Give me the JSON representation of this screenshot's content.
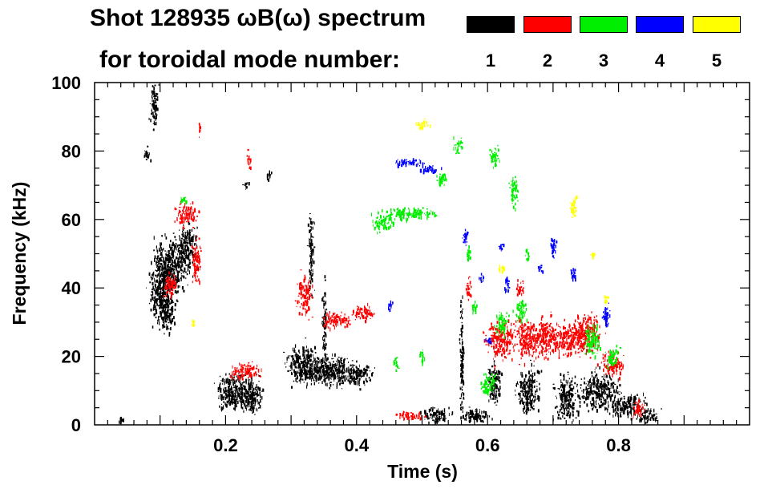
{
  "chart_data": {
    "type": "scatter",
    "title_line1": "Shot 128935 ωB(ω) spectrum",
    "title_line2": "for toroidal mode number:",
    "xlabel": "Time (s)",
    "ylabel": "Frequency (kHz)",
    "xlim": [
      0.0,
      1.0
    ],
    "ylim": [
      0,
      100
    ],
    "xticks": [
      0.2,
      0.4,
      0.6,
      0.8
    ],
    "xtick_labels": [
      "0.2",
      "0.4",
      "0.6",
      "0.8"
    ],
    "yticks": [
      0,
      20,
      40,
      60,
      80,
      100
    ],
    "ytick_labels": [
      "0",
      "20",
      "40",
      "60",
      "80",
      "100"
    ],
    "legend": [
      {
        "label": "1",
        "color": "#000000"
      },
      {
        "label": "2",
        "color": "#ff0000"
      },
      {
        "label": "3",
        "color": "#00ee00"
      },
      {
        "label": "4",
        "color": "#0000ff"
      },
      {
        "label": "5",
        "color": "#ffff00"
      }
    ],
    "series": [
      {
        "name": "1",
        "color": "#000000",
        "blobs": [
          [
            0.09,
            94,
            0.006,
            6
          ],
          [
            0.08,
            79,
            0.004,
            2
          ],
          [
            0.1,
            40,
            0.015,
            8
          ],
          [
            0.115,
            46,
            0.02,
            8
          ],
          [
            0.14,
            52,
            0.015,
            6
          ],
          [
            0.11,
            33,
            0.01,
            5
          ],
          [
            0.215,
            10,
            0.025,
            5
          ],
          [
            0.24,
            8,
            0.015,
            4
          ],
          [
            0.23,
            70,
            0.004,
            1
          ],
          [
            0.265,
            73,
            0.003,
            1
          ],
          [
            0.315,
            18,
            0.02,
            5
          ],
          [
            0.34,
            16,
            0.02,
            4
          ],
          [
            0.37,
            16,
            0.02,
            4
          ],
          [
            0.4,
            15,
            0.02,
            3
          ],
          [
            0.33,
            50,
            0.004,
            10
          ],
          [
            0.52,
            3,
            0.02,
            2
          ],
          [
            0.58,
            3,
            0.02,
            2
          ],
          [
            0.56,
            18,
            0.003,
            15
          ],
          [
            0.61,
            12,
            0.01,
            5
          ],
          [
            0.66,
            10,
            0.015,
            6
          ],
          [
            0.72,
            8,
            0.015,
            6
          ],
          [
            0.77,
            10,
            0.025,
            5
          ],
          [
            0.81,
            6,
            0.025,
            3
          ],
          [
            0.845,
            3,
            0.015,
            2
          ],
          [
            0.04,
            2,
            0.004,
            1
          ],
          [
            0.35,
            30,
            0.003,
            10
          ]
        ]
      },
      {
        "name": "2",
        "color": "#ff0000",
        "blobs": [
          [
            0.115,
            41,
            0.01,
            3
          ],
          [
            0.14,
            62,
            0.015,
            3
          ],
          [
            0.155,
            48,
            0.006,
            6
          ],
          [
            0.16,
            87,
            0.002,
            2
          ],
          [
            0.235,
            78,
            0.003,
            2
          ],
          [
            0.23,
            16,
            0.02,
            2
          ],
          [
            0.32,
            38,
            0.01,
            5
          ],
          [
            0.37,
            31,
            0.02,
            2
          ],
          [
            0.41,
            33,
            0.015,
            2
          ],
          [
            0.57,
            40,
            0.004,
            3
          ],
          [
            0.62,
            25,
            0.02,
            5
          ],
          [
            0.66,
            25,
            0.015,
            5
          ],
          [
            0.69,
            26,
            0.015,
            5
          ],
          [
            0.72,
            25,
            0.02,
            4
          ],
          [
            0.75,
            27,
            0.02,
            5
          ],
          [
            0.79,
            18,
            0.015,
            3
          ],
          [
            0.83,
            5,
            0.008,
            2
          ],
          [
            0.48,
            3,
            0.02,
            1
          ],
          [
            0.65,
            40,
            0.006,
            2
          ]
        ]
      },
      {
        "name": "3",
        "color": "#00ee00",
        "blobs": [
          [
            0.135,
            66,
            0.006,
            1
          ],
          [
            0.48,
            62,
            0.04,
            1.5
          ],
          [
            0.44,
            59,
            0.015,
            2
          ],
          [
            0.53,
            72,
            0.008,
            2
          ],
          [
            0.555,
            82,
            0.006,
            2
          ],
          [
            0.61,
            79,
            0.006,
            3
          ],
          [
            0.64,
            68,
            0.006,
            4
          ],
          [
            0.57,
            50,
            0.004,
            2
          ],
          [
            0.65,
            34,
            0.008,
            3
          ],
          [
            0.62,
            30,
            0.008,
            3
          ],
          [
            0.76,
            25,
            0.01,
            4
          ],
          [
            0.79,
            20,
            0.008,
            3
          ],
          [
            0.6,
            12,
            0.01,
            3
          ],
          [
            0.58,
            35,
            0.004,
            2
          ],
          [
            0.46,
            18,
            0.004,
            2
          ],
          [
            0.5,
            20,
            0.004,
            2
          ],
          [
            0.66,
            50,
            0.003,
            2
          ]
        ]
      },
      {
        "name": "4",
        "color": "#0000ff",
        "blobs": [
          [
            0.48,
            77,
            0.02,
            1
          ],
          [
            0.51,
            75,
            0.015,
            1
          ],
          [
            0.565,
            55,
            0.004,
            2
          ],
          [
            0.59,
            43,
            0.004,
            1
          ],
          [
            0.63,
            41,
            0.004,
            2
          ],
          [
            0.7,
            52,
            0.004,
            3
          ],
          [
            0.73,
            44,
            0.004,
            2
          ],
          [
            0.78,
            32,
            0.006,
            3
          ],
          [
            0.62,
            52,
            0.003,
            1
          ],
          [
            0.45,
            35,
            0.003,
            1
          ],
          [
            0.6,
            25,
            0.003,
            1
          ],
          [
            0.68,
            46,
            0.003,
            1
          ]
        ]
      },
      {
        "name": "5",
        "color": "#ffff00",
        "blobs": [
          [
            0.5,
            88,
            0.01,
            1
          ],
          [
            0.73,
            64,
            0.005,
            3
          ],
          [
            0.62,
            46,
            0.004,
            1
          ],
          [
            0.78,
            37,
            0.004,
            1
          ],
          [
            0.76,
            50,
            0.003,
            1
          ],
          [
            0.15,
            30,
            0.002,
            1
          ]
        ]
      }
    ]
  }
}
